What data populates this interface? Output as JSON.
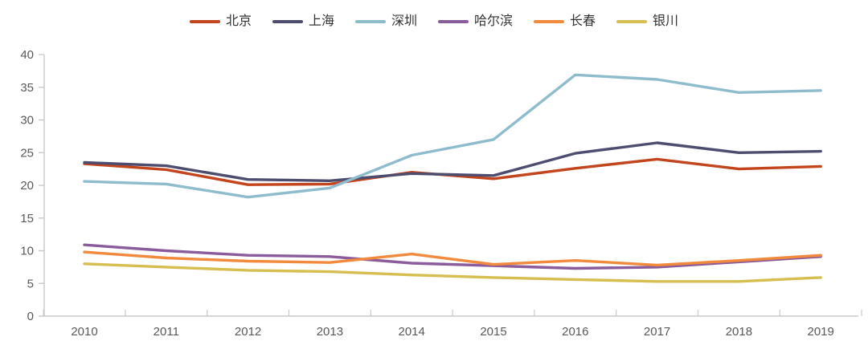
{
  "chart_data": {
    "type": "line",
    "x": [
      "2010",
      "2011",
      "2012",
      "2013",
      "2014",
      "2015",
      "2016",
      "2017",
      "2018",
      "2019"
    ],
    "series": [
      {
        "name": "北京",
        "color": "#c3451d",
        "values": [
          23.3,
          22.4,
          20.1,
          20.2,
          22.0,
          21.0,
          22.6,
          24.0,
          22.5,
          22.9
        ]
      },
      {
        "name": "上海",
        "color": "#4d4d70",
        "values": [
          23.5,
          23.0,
          20.9,
          20.7,
          21.8,
          21.5,
          24.9,
          26.5,
          25.0,
          25.2
        ]
      },
      {
        "name": "深圳",
        "color": "#8fbccc",
        "values": [
          20.6,
          20.2,
          18.2,
          19.6,
          24.6,
          27.0,
          36.9,
          36.2,
          34.2,
          34.5
        ]
      },
      {
        "name": "哈尔滨",
        "color": "#8a5c9b",
        "values": [
          10.9,
          10.0,
          9.3,
          9.1,
          8.1,
          7.7,
          7.3,
          7.5,
          8.3,
          9.1
        ]
      },
      {
        "name": "长春",
        "color": "#f28a3d",
        "values": [
          9.8,
          8.9,
          8.4,
          8.2,
          9.5,
          7.9,
          8.5,
          7.8,
          8.5,
          9.3
        ]
      },
      {
        "name": "银川",
        "color": "#d6be50",
        "values": [
          8.0,
          7.5,
          7.0,
          6.8,
          6.3,
          5.9,
          5.6,
          5.3,
          5.3,
          5.9
        ]
      }
    ],
    "title": "",
    "xlabel": "",
    "ylabel": "",
    "ylim": [
      0,
      40
    ],
    "ytick_step": 5,
    "yticks": [
      0,
      5,
      10,
      15,
      20,
      25,
      30,
      35,
      40
    ],
    "grid": false,
    "legend_position": "top",
    "axis_color": "#c9c9c9",
    "tick_label_color": "#595959"
  }
}
